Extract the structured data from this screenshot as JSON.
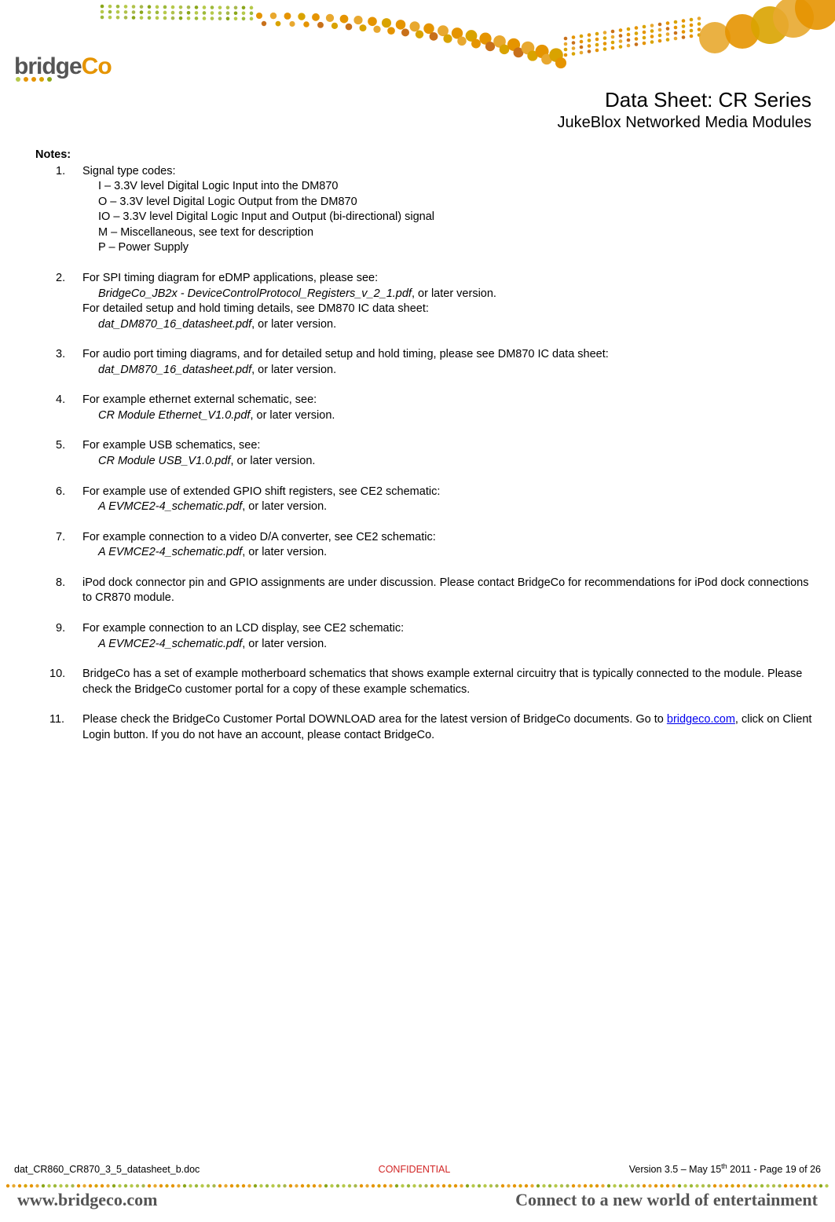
{
  "header": {
    "logo_bridge": "bridge",
    "logo_co": "Co",
    "logo_dot_colors": [
      "#b6c94a",
      "#e59400",
      "#e59400",
      "#d9a300",
      "#8aa61a"
    ],
    "title_line1": "Data Sheet: CR Series",
    "title_line2": "JukeBlox Networked Media Modules"
  },
  "arc": {
    "dot_colors_left": [
      "#8aa61a",
      "#b6c94a",
      "#9db93a",
      "#b6c94a",
      "#b0c24a",
      "#a7b84c"
    ],
    "dot_colors_mid_a": [
      "#e59400",
      "#e8a82f",
      "#e59400",
      "#d9a300",
      "#e59400",
      "#e8a82f"
    ],
    "dot_colors_mid_b": [
      "#c8701a",
      "#d9a300",
      "#e8a82f",
      "#e59400",
      "#c8701a",
      "#d9a300"
    ],
    "dot_colors_right": [
      "#e59400",
      "#d9a300",
      "#e8a82f",
      "#c8701a",
      "#e59400",
      "#d9a300"
    ],
    "big_dot_colors": [
      "#e8a82f",
      "#e59400",
      "#d9a300",
      "#e8a82f",
      "#e59400"
    ]
  },
  "notes": {
    "heading": "Notes:",
    "items": [
      {
        "num": "1.",
        "text": "Signal type codes:",
        "codes": [
          "I – 3.3V level Digital Logic Input into the DM870",
          "O – 3.3V level Digital Logic Output from the DM870",
          "IO – 3.3V level Digital Logic Input and Output (bi-directional) signal",
          "M – Miscellaneous, see text for description",
          "P – Power Supply"
        ]
      },
      {
        "num": "2.",
        "text": "For SPI timing diagram for eDMP applications, please see:",
        "ref": "BridgeCo_JB2x - DeviceControlProtocol_Registers_v_2_1.pdf",
        "ref_suffix": ", or later version.",
        "text2": "For detailed setup and hold timing details, see DM870 IC data sheet:",
        "ref2": "dat_DM870_16_datasheet.pdf",
        "ref2_suffix": ", or later version."
      },
      {
        "num": "3.",
        "text": "For audio port timing diagrams, and for detailed setup and hold timing, please see DM870 IC data sheet:",
        "ref": "dat_DM870_16_datasheet.pdf",
        "ref_suffix": ", or later version."
      },
      {
        "num": "4.",
        "text": "For example ethernet external schematic, see:",
        "ref": "CR Module Ethernet_V1.0.pdf",
        "ref_suffix": ", or later version."
      },
      {
        "num": "5.",
        "text": "For example USB schematics, see:",
        "ref": "CR Module USB_V1.0.pdf",
        "ref_suffix": ", or later version."
      },
      {
        "num": "6.",
        "text": "For example use of extended GPIO shift registers, see CE2 schematic:",
        "ref": "A EVMCE2-4_schematic.pdf",
        "ref_suffix": ", or later version."
      },
      {
        "num": "7.",
        "text": "For example connection to a video D/A converter, see CE2 schematic:",
        "ref": "A EVMCE2-4_schematic.pdf",
        "ref_suffix": ", or later version."
      },
      {
        "num": "8.",
        "text": "iPod dock connector pin and GPIO assignments are under discussion. Please contact BridgeCo for recommendations for iPod dock connections to CR870 module."
      },
      {
        "num": "9.",
        "text": "For example connection to an LCD display, see CE2 schematic:",
        "ref": "A EVMCE2-4_schematic.pdf",
        "ref_suffix": ", or later version."
      },
      {
        "num": "10.",
        "text": "BridgeCo has a set of example motherboard schematics that shows example external circuitry that is typically connected to the module. Please check the BridgeCo customer portal for a copy of these example schematics."
      },
      {
        "num": "11.",
        "text_pre": "Please check the BridgeCo Customer Portal DOWNLOAD area for the latest version of BridgeCo documents. Go to ",
        "link": "bridgeco.com",
        "text_post": ", click on Client Login button. If you do not have an account, please contact BridgeCo."
      }
    ]
  },
  "footer": {
    "left": "dat_CR860_CR870_3_5_datasheet_b.doc",
    "mid": "CONFIDENTIAL",
    "right_pre": "Version 3.5 – May 15",
    "right_sup": "th",
    "right_post": " 2011 - Page 19 of 26"
  },
  "bottom": {
    "url": "www.bridgeco.com",
    "tagline": "Connect to a new world of entertainment"
  },
  "colors": {
    "text": "#000000",
    "confidential": "#d22626",
    "link": "#0000ee",
    "logo_gray": "#555555",
    "logo_orange": "#e59400"
  }
}
